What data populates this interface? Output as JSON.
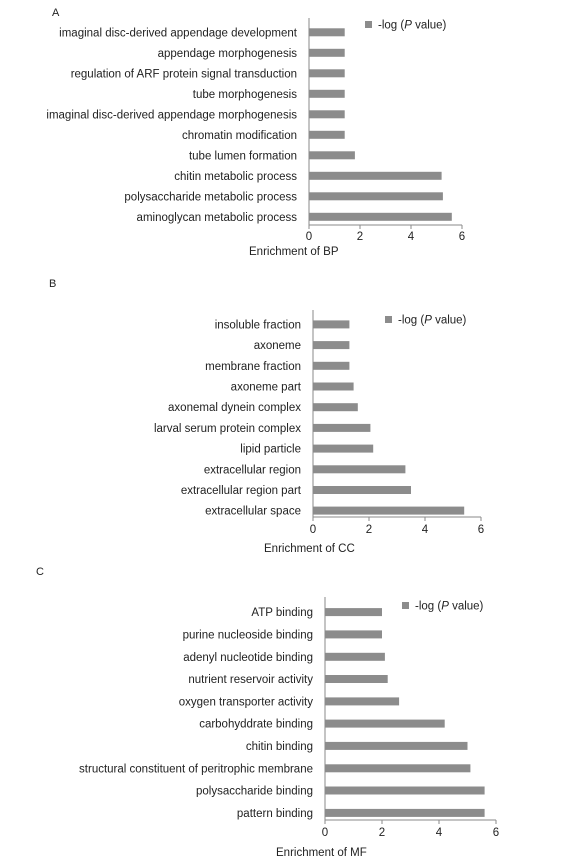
{
  "chart_data": [
    {
      "type": "bar",
      "orientation": "horizontal",
      "panel_label": "A",
      "xlabel": "Enrichment of BP",
      "xlim": [
        0,
        6
      ],
      "xticks": [
        0,
        2,
        4,
        6
      ],
      "legend": {
        "label_prefix": "-log (",
        "label_italic": "P",
        "label_suffix": " value)",
        "placement": "top-right"
      },
      "categories": [
        "imaginal disc-derived appendage development",
        "appendage morphogenesis",
        "regulation of ARF protein signal transduction",
        "tube morphogenesis",
        "imaginal disc-derived appendage morphogenesis",
        "chromatin modification",
        "tube lumen formation",
        "chitin metabolic process",
        "polysaccharide metabolic process",
        "aminoglycan metabolic process"
      ],
      "values": [
        1.4,
        1.4,
        1.4,
        1.4,
        1.4,
        1.4,
        1.8,
        5.2,
        5.25,
        5.6
      ],
      "color": "#8c8c8c",
      "grid": false
    },
    {
      "type": "bar",
      "orientation": "horizontal",
      "panel_label": "B",
      "xlabel": "Enrichment of CC",
      "xlim": [
        0,
        6
      ],
      "xticks": [
        0,
        2,
        4,
        6
      ],
      "legend": {
        "label_prefix": "-log (",
        "label_italic": "P",
        "label_suffix": " value)",
        "placement": "top-right"
      },
      "categories": [
        "insoluble fraction",
        "axoneme",
        "membrane fraction",
        "axoneme part",
        "axonemal dynein complex",
        "larval serum protein complex",
        "lipid particle",
        "extracellular region",
        "extracellular region part",
        "extracellular space"
      ],
      "values": [
        1.3,
        1.3,
        1.3,
        1.45,
        1.6,
        2.05,
        2.15,
        3.3,
        3.5,
        5.4
      ],
      "color": "#8c8c8c",
      "grid": false
    },
    {
      "type": "bar",
      "orientation": "horizontal",
      "panel_label": "C",
      "xlabel": "Enrichment of MF",
      "xlim": [
        0,
        6
      ],
      "xticks": [
        0,
        2,
        4,
        6
      ],
      "legend": {
        "label_prefix": "-log (",
        "label_italic": "P",
        "label_suffix": " value)",
        "placement": "top-right"
      },
      "categories": [
        "ATP binding",
        "purine nucleoside binding",
        "adenyl nucleotide binding",
        "nutrient reservoir activity",
        "oxygen transporter activity",
        "carbohyddrate binding",
        "chitin binding",
        "structural constituent of peritrophic membrane",
        "polysaccharide binding",
        "pattern binding"
      ],
      "values": [
        2.0,
        2.0,
        2.1,
        2.2,
        2.6,
        4.2,
        5.0,
        5.1,
        5.6,
        5.6
      ],
      "color": "#8c8c8c",
      "grid": false
    }
  ]
}
